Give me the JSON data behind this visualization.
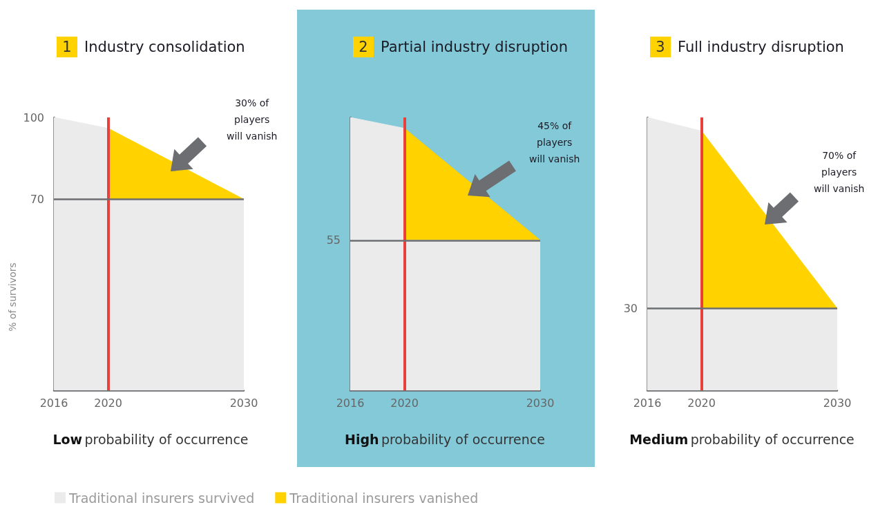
{
  "chart_data": [
    {
      "type": "area",
      "title": "1 Industry consolidation",
      "ylabel": "% of survivors",
      "xlim": [
        2016,
        2030
      ],
      "xticks": [
        2016,
        2020,
        2030
      ],
      "ylim": [
        0,
        100
      ],
      "yticks": [
        100,
        70
      ],
      "grid": false,
      "marker": "none",
      "legend": "bottom",
      "series": [
        {
          "name": "Traditional insurers vanished",
          "color": "#ffd200",
          "x": [
            2020,
            2030
          ],
          "values": [
            96,
            70
          ]
        },
        {
          "name": "Traditional insurers survived",
          "color": "#ebebeb",
          "x": [
            2016,
            2020,
            2020,
            2030
          ],
          "values": [
            100,
            96,
            70,
            70
          ]
        }
      ],
      "ref_lines": [
        {
          "axis": "x",
          "value": 2020,
          "color": "#e8413c"
        },
        {
          "axis": "y",
          "value": 70,
          "color": "#6d6e71"
        }
      ],
      "annotations": [
        "30% of\nplayers\nwill vanish",
        "Low probability of occurrence"
      ]
    },
    {
      "type": "area",
      "title": "2 Partial industry disruption",
      "xlim": [
        2016,
        2030
      ],
      "xticks": [
        2016,
        2020,
        2030
      ],
      "ylim": [
        0,
        100
      ],
      "yticks": [
        55
      ],
      "grid": false,
      "marker": "none",
      "series": [
        {
          "color": "#ffd200",
          "x": [
            2020,
            2030
          ],
          "values": [
            96,
            55
          ]
        },
        {
          "color": "#ebebeb",
          "x": [
            2016,
            2020,
            2020,
            2030
          ],
          "values": [
            100,
            96,
            55,
            55
          ]
        }
      ],
      "ref_lines": [
        {
          "axis": "x",
          "value": 2020,
          "color": "#e8413c"
        },
        {
          "axis": "y",
          "value": 55,
          "color": "#6d6e71"
        }
      ],
      "annotations": [
        "45% of\nplayers\nwill vanish",
        "High probability of occurrence"
      ]
    },
    {
      "type": "area",
      "title": "3 Full industry disruption",
      "xlim": [
        2016,
        2030
      ],
      "xticks": [
        2016,
        2020,
        2030
      ],
      "ylim": [
        0,
        100
      ],
      "yticks": [
        30
      ],
      "grid": false,
      "marker": "none",
      "series": [
        {
          "color": "#ffd200",
          "x": [
            2020,
            2030
          ],
          "values": [
            95,
            30
          ]
        },
        {
          "color": "#ebebeb",
          "x": [
            2016,
            2020,
            2020,
            2030
          ],
          "values": [
            100,
            95,
            30,
            30
          ]
        }
      ],
      "ref_lines": [
        {
          "axis": "x",
          "value": 2020,
          "color": "#e8413c"
        },
        {
          "axis": "y",
          "value": 30,
          "color": "#6d6e71"
        }
      ],
      "annotations": [
        "70% of\nplayers\nwill vanish",
        "Medium probability of occurrence"
      ]
    }
  ]
}
